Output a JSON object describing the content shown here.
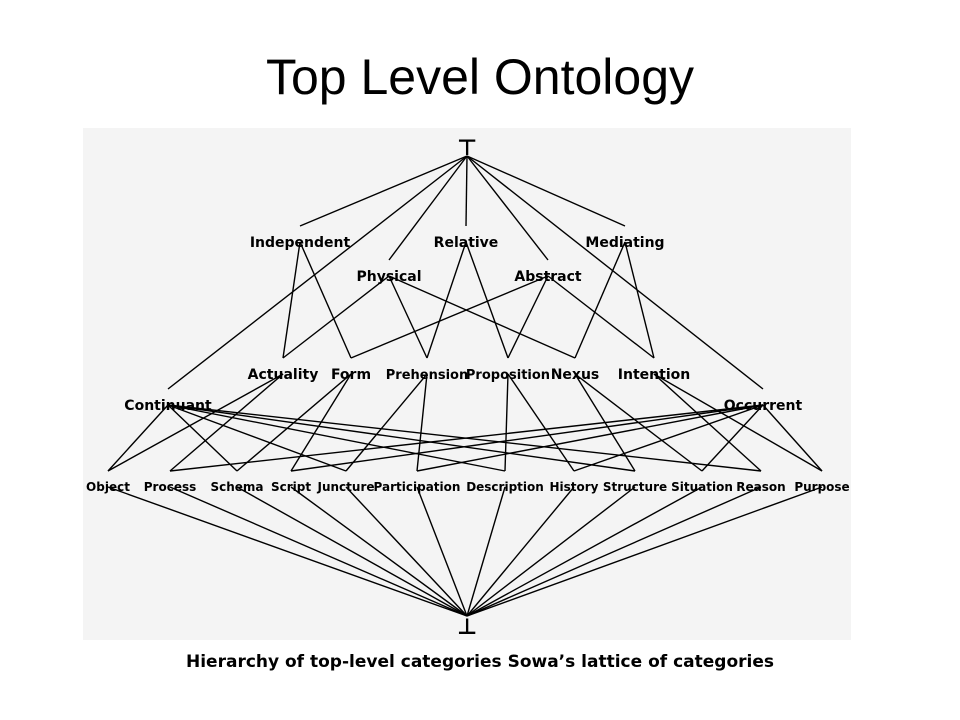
{
  "title": "Top Level Ontology",
  "caption": "Hierarchy of top-level categories Sowa’s lattice of categories",
  "lattice": {
    "top_symbol": "⊤",
    "bottom_symbol": "⊥",
    "nodes": {
      "independent": "Independent",
      "relative": "Relative",
      "mediating": "Mediating",
      "physical": "Physical",
      "abstract": "Abstract",
      "actuality": "Actuality",
      "form": "Form",
      "prehension": "Prehension",
      "proposition": "Proposition",
      "nexus": "Nexus",
      "intention": "Intention",
      "continuant": "Continuant",
      "occurrent": "Occurrent",
      "object": "Object",
      "process": "Process",
      "schema": "Schema",
      "script": "Script",
      "juncture": "Juncture",
      "participation": "Participation",
      "description": "Description",
      "history": "History",
      "structure": "Structure",
      "situation": "Situation",
      "reason": "Reason",
      "purpose": "Purpose"
    },
    "edges": [
      [
        "top",
        "independent"
      ],
      [
        "top",
        "relative"
      ],
      [
        "top",
        "mediating"
      ],
      [
        "top",
        "physical"
      ],
      [
        "top",
        "abstract"
      ],
      [
        "top",
        "continuant"
      ],
      [
        "top",
        "occurrent"
      ],
      [
        "independent",
        "actuality"
      ],
      [
        "independent",
        "form"
      ],
      [
        "relative",
        "prehension"
      ],
      [
        "relative",
        "proposition"
      ],
      [
        "mediating",
        "nexus"
      ],
      [
        "mediating",
        "intention"
      ],
      [
        "physical",
        "actuality"
      ],
      [
        "physical",
        "prehension"
      ],
      [
        "physical",
        "nexus"
      ],
      [
        "abstract",
        "form"
      ],
      [
        "abstract",
        "proposition"
      ],
      [
        "abstract",
        "intention"
      ],
      [
        "actuality",
        "object"
      ],
      [
        "actuality",
        "process"
      ],
      [
        "form",
        "schema"
      ],
      [
        "form",
        "script"
      ],
      [
        "prehension",
        "juncture"
      ],
      [
        "prehension",
        "participation"
      ],
      [
        "proposition",
        "description"
      ],
      [
        "proposition",
        "history"
      ],
      [
        "nexus",
        "structure"
      ],
      [
        "nexus",
        "situation"
      ],
      [
        "intention",
        "reason"
      ],
      [
        "intention",
        "purpose"
      ],
      [
        "continuant",
        "object"
      ],
      [
        "continuant",
        "schema"
      ],
      [
        "continuant",
        "juncture"
      ],
      [
        "continuant",
        "description"
      ],
      [
        "continuant",
        "structure"
      ],
      [
        "continuant",
        "reason"
      ],
      [
        "occurrent",
        "process"
      ],
      [
        "occurrent",
        "script"
      ],
      [
        "occurrent",
        "participation"
      ],
      [
        "occurrent",
        "history"
      ],
      [
        "occurrent",
        "situation"
      ],
      [
        "occurrent",
        "purpose"
      ],
      [
        "object",
        "bottom"
      ],
      [
        "process",
        "bottom"
      ],
      [
        "schema",
        "bottom"
      ],
      [
        "script",
        "bottom"
      ],
      [
        "juncture",
        "bottom"
      ],
      [
        "participation",
        "bottom"
      ],
      [
        "description",
        "bottom"
      ],
      [
        "history",
        "bottom"
      ],
      [
        "structure",
        "bottom"
      ],
      [
        "situation",
        "bottom"
      ],
      [
        "reason",
        "bottom"
      ],
      [
        "purpose",
        "bottom"
      ]
    ]
  }
}
